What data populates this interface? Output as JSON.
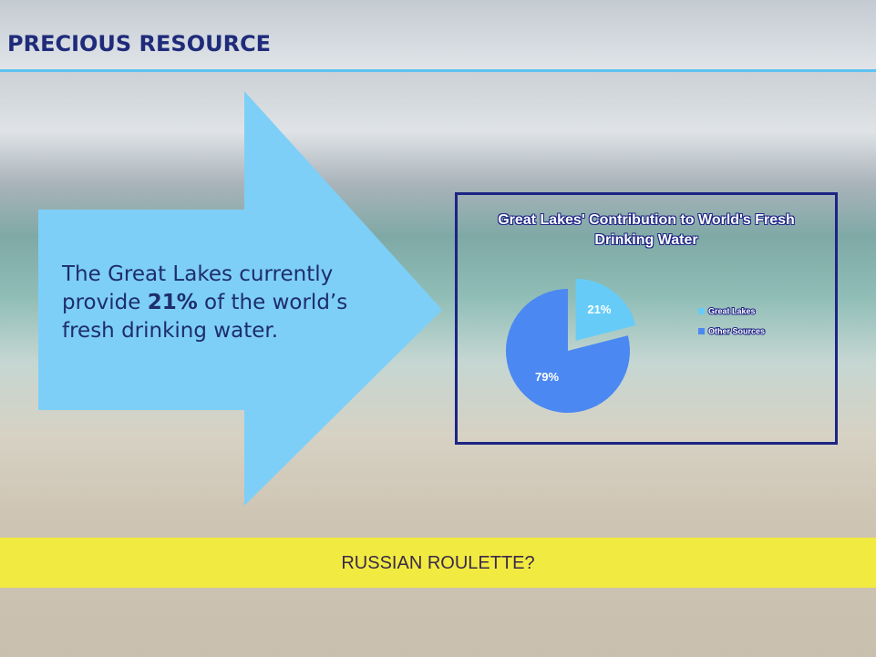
{
  "header": {
    "title": "PRECIOUS RESOURCE"
  },
  "arrow": {
    "before": "The Great Lakes currently provide ",
    "bold": "21%",
    "after": " of the world’s fresh drinking water."
  },
  "banner": {
    "text": "RUSSIAN ROULETTE?"
  },
  "chart_data": {
    "type": "pie",
    "title": "Great Lakes' Contribution to World's Fresh Drinking Water",
    "categories": [
      "Great Lakes",
      "Other Sources"
    ],
    "values": [
      21,
      79
    ],
    "value_labels": [
      "21%",
      "79%"
    ],
    "colors": [
      "#66ccf7",
      "#4b88f2"
    ],
    "exploded": [
      true,
      false
    ]
  }
}
